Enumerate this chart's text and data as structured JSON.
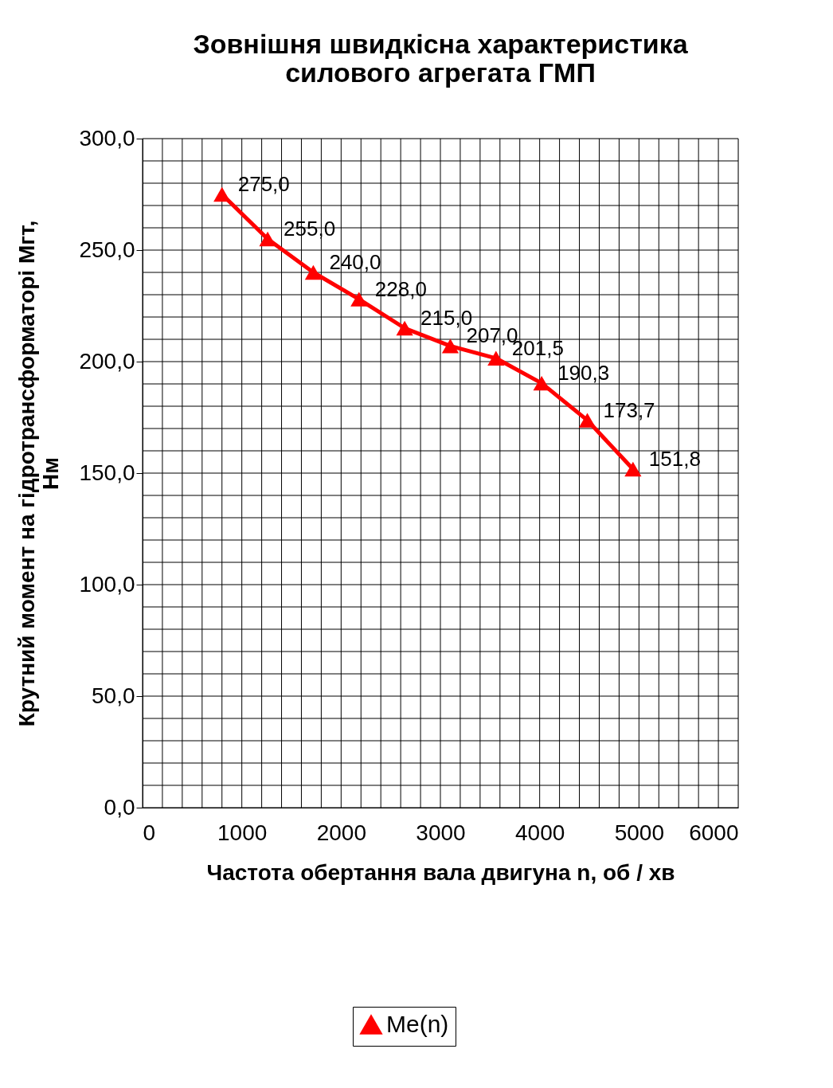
{
  "chart_data": {
    "type": "line",
    "title": [
      "Зовнішня швидкісна характеристика",
      "силового агрегата ГМП"
    ],
    "xlabel": "Частота обертання вала двигуна   n,   об / хв",
    "ylabel": "Крутний момент на гідротрансформаторі   Мгт,\nНм",
    "x": [
      800,
      1260,
      1720,
      2180,
      2640,
      3100,
      3560,
      4020,
      4480,
      4940
    ],
    "series": [
      {
        "name": "Me(n)",
        "color": "#ff0000",
        "values": [
          275.0,
          255.0,
          240.0,
          228.0,
          215.0,
          207.0,
          201.5,
          190.3,
          173.7,
          151.8
        ],
        "value_labels": [
          "275,0",
          "255,0",
          "240,0",
          "228,0",
          "215,0",
          "207,0",
          "201,5",
          "190,3",
          "173,7",
          "151,8"
        ]
      }
    ],
    "xlim": [
      0,
      6000
    ],
    "ylim": [
      0,
      300
    ],
    "xticks": [
      0,
      {
        "value": 200,
        "label": null
      },
      {
        "value": 400,
        "label": null
      },
      {
        "value": 600,
        "label": null
      },
      {
        "value": 800,
        "label": null
      },
      1000,
      {
        "value": 1200,
        "label": null
      },
      {
        "value": 1400,
        "label": null
      },
      {
        "value": 1600,
        "label": null
      },
      {
        "value": 1800,
        "label": null
      },
      2000,
      {
        "value": 2200,
        "label": null
      },
      {
        "value": 2400,
        "label": null
      },
      {
        "value": 2600,
        "label": null
      },
      {
        "value": 2800,
        "label": null
      },
      3000,
      {
        "value": 3200,
        "label": null
      },
      {
        "value": 3400,
        "label": null
      },
      {
        "value": 3600,
        "label": null
      },
      {
        "value": 3800,
        "label": null
      },
      4000,
      {
        "value": 4200,
        "label": null
      },
      {
        "value": 4400,
        "label": null
      },
      {
        "value": 4600,
        "label": null
      },
      {
        "value": 4800,
        "label": null
      },
      5000,
      {
        "value": 5200,
        "label": null
      },
      {
        "value": 5400,
        "label": null
      },
      {
        "value": 5600,
        "label": null
      },
      {
        "value": 5800,
        "label": null
      },
      6000
    ],
    "yticks": [
      {
        "value": 0,
        "label": "0,0"
      },
      {
        "value": 10,
        "label": null
      },
      {
        "value": 20,
        "label": null
      },
      {
        "value": 30,
        "label": null
      },
      {
        "value": 40,
        "label": null
      },
      {
        "value": 50,
        "label": "50,0"
      },
      {
        "value": 60,
        "label": null
      },
      {
        "value": 70,
        "label": null
      },
      {
        "value": 80,
        "label": null
      },
      {
        "value": 90,
        "label": null
      },
      {
        "value": 100,
        "label": "100,0"
      },
      {
        "value": 110,
        "label": null
      },
      {
        "value": 120,
        "label": null
      },
      {
        "value": 130,
        "label": null
      },
      {
        "value": 140,
        "label": null
      },
      {
        "value": 150,
        "label": "150,0"
      },
      {
        "value": 160,
        "label": null
      },
      {
        "value": 170,
        "label": null
      },
      {
        "value": 180,
        "label": null
      },
      {
        "value": 190,
        "label": null
      },
      {
        "value": 200,
        "label": "200,0"
      },
      {
        "value": 210,
        "label": null
      },
      {
        "value": 220,
        "label": null
      },
      {
        "value": 230,
        "label": null
      },
      {
        "value": 240,
        "label": null
      },
      {
        "value": 250,
        "label": "250,0"
      },
      {
        "value": 260,
        "label": null
      },
      {
        "value": 270,
        "label": null
      },
      {
        "value": 280,
        "label": null
      },
      {
        "value": 290,
        "label": null
      },
      {
        "value": 300,
        "label": "300,0"
      }
    ],
    "grid": true,
    "legend": "bottom",
    "marker": "triangle",
    "line_style": "solid"
  }
}
